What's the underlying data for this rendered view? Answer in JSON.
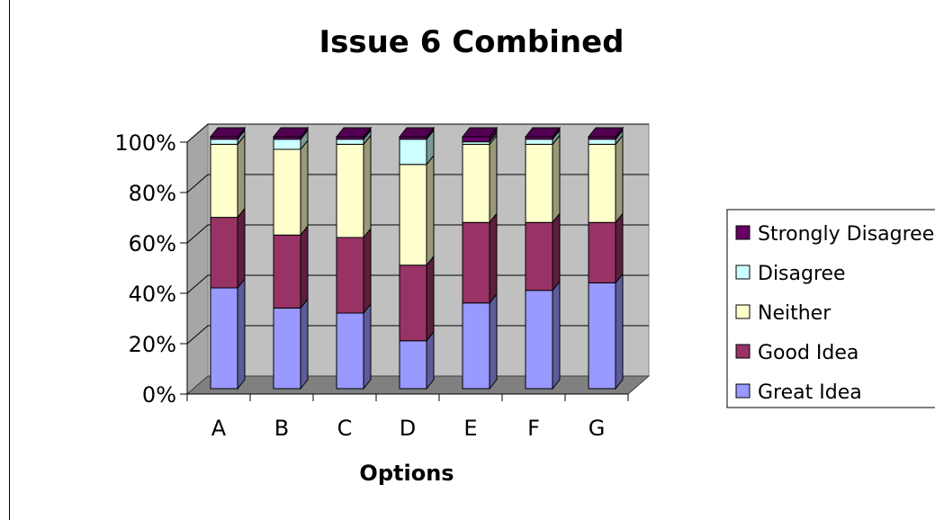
{
  "chart_data": {
    "type": "bar",
    "stacked": true,
    "percent_stacked": true,
    "three_d": true,
    "title": "Issue 6 Combined",
    "xlabel": "Options",
    "ylabel": "",
    "categories": [
      "A",
      "B",
      "C",
      "D",
      "E",
      "F",
      "G"
    ],
    "y_ticks": [
      "0%",
      "20%",
      "40%",
      "60%",
      "80%",
      "100%"
    ],
    "ylim": [
      0,
      100
    ],
    "grid": true,
    "legend_position": "right",
    "series": [
      {
        "name": "Great Idea",
        "color": "#9999ff",
        "values": [
          40,
          32,
          30,
          19,
          34,
          39,
          42
        ]
      },
      {
        "name": "Good Idea",
        "color": "#993366",
        "values": [
          28,
          29,
          30,
          30,
          32,
          27,
          24
        ]
      },
      {
        "name": "Neither",
        "color": "#ffffcc",
        "values": [
          29,
          34,
          37,
          40,
          31,
          31,
          31
        ]
      },
      {
        "name": "Disagree",
        "color": "#ccffff",
        "values": [
          2,
          4,
          2,
          10,
          1,
          2,
          2
        ]
      },
      {
        "name": "Strongly Disagree",
        "color": "#660066",
        "values": [
          1,
          1,
          1,
          1,
          2,
          1,
          1
        ]
      }
    ]
  }
}
